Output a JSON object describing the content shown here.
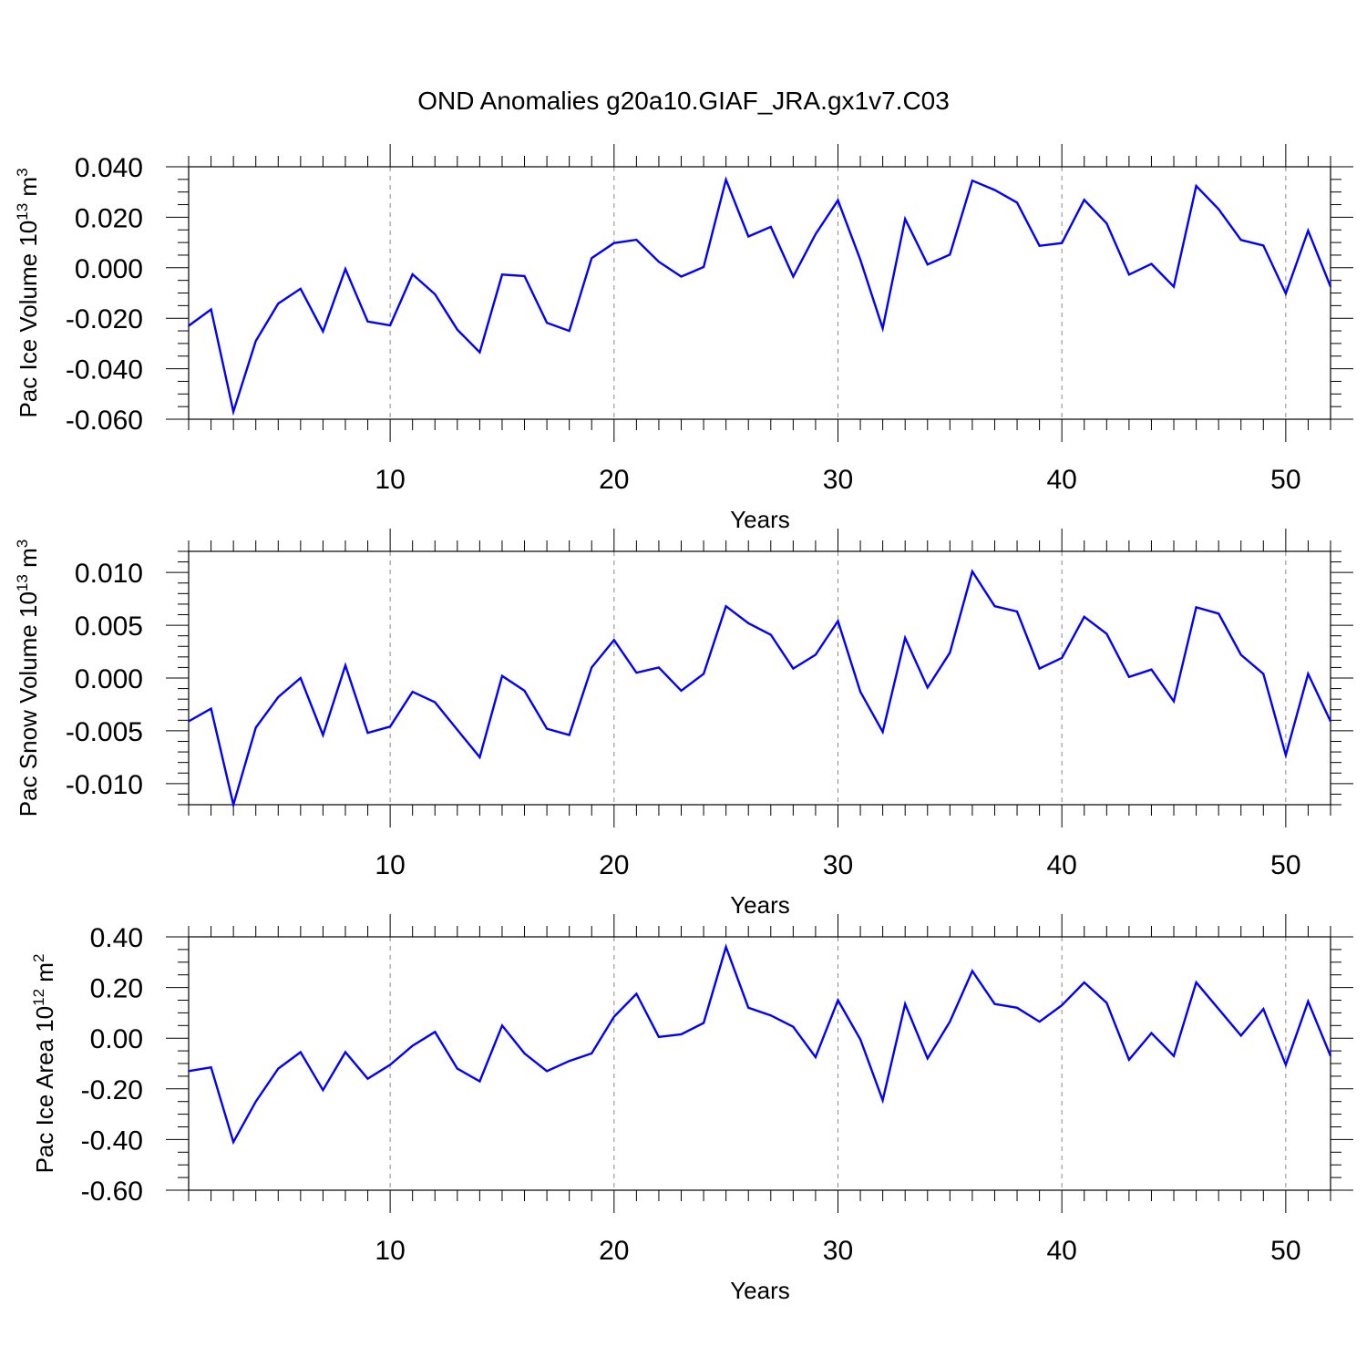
{
  "title": "OND Anomalies g20a10.GIAF_JRA.gx1v7.C03",
  "colors": {
    "line": "#0000ff",
    "axis": "#000000",
    "grid": "#888888",
    "background": "#ffffff"
  },
  "chart_data": [
    {
      "type": "line",
      "id": "ice-volume",
      "ylabel_main": "Pac Ice Volume 10",
      "ylabel_exp": "13",
      "ylabel_unit": " m",
      "ylabel_unit_exp": "3",
      "xlabel": "Years",
      "xlim": [
        1,
        52
      ],
      "ylim": [
        -0.06,
        0.04
      ],
      "x_ticks": [
        10,
        20,
        30,
        40,
        50
      ],
      "x_tick_labels": [
        "10",
        "20",
        "30",
        "40",
        "50"
      ],
      "y_ticks": [
        0.04,
        0.02,
        0.0,
        -0.02,
        -0.04,
        -0.06
      ],
      "y_tick_labels": [
        "0.040",
        "0.020",
        "0.000",
        "-0.020",
        "-0.040",
        "-0.060"
      ],
      "y_minor_step": 0.005,
      "x": [
        1,
        2,
        3,
        4,
        5,
        6,
        7,
        8,
        9,
        10,
        11,
        12,
        13,
        14,
        15,
        16,
        17,
        18,
        19,
        20,
        21,
        22,
        23,
        24,
        25,
        26,
        27,
        28,
        29,
        30,
        31,
        32,
        33,
        34,
        35,
        36,
        37,
        38,
        39,
        40,
        41,
        42,
        43,
        44,
        45,
        46,
        47,
        48,
        49,
        50,
        51,
        52
      ],
      "values": [
        -0.023,
        -0.0165,
        -0.057,
        -0.029,
        -0.0142,
        -0.0083,
        -0.0252,
        -0.0005,
        -0.0213,
        -0.0228,
        -0.0026,
        -0.0105,
        -0.0245,
        -0.0335,
        -0.0027,
        -0.0033,
        -0.0218,
        -0.025,
        0.0038,
        0.0098,
        0.0111,
        0.0024,
        -0.0035,
        0.0003,
        0.0349,
        0.0124,
        0.0162,
        -0.0035,
        0.0133,
        0.0267,
        0.0031,
        -0.024,
        0.0193,
        0.0013,
        0.0052,
        0.0345,
        0.0308,
        0.0258,
        0.0087,
        0.0098,
        0.0269,
        0.0176,
        -0.0027,
        0.0015,
        -0.0075,
        0.0324,
        0.0232,
        0.011,
        0.0088,
        -0.0102,
        0.0147,
        -0.0075
      ]
    },
    {
      "type": "line",
      "id": "snow-volume",
      "ylabel_main": "Pac Snow Volume 10",
      "ylabel_exp": "13",
      "ylabel_unit": " m",
      "ylabel_unit_exp": "3",
      "xlabel": "Years",
      "xlim": [
        1,
        52
      ],
      "ylim": [
        -0.012,
        0.012
      ],
      "x_ticks": [
        10,
        20,
        30,
        40,
        50
      ],
      "x_tick_labels": [
        "10",
        "20",
        "30",
        "40",
        "50"
      ],
      "y_ticks": [
        0.01,
        0.005,
        0.0,
        -0.005,
        -0.01
      ],
      "y_tick_labels": [
        "0.010",
        "0.005",
        "0.000",
        "-0.005",
        "-0.010"
      ],
      "y_minor_step": 0.001,
      "x": [
        1,
        2,
        3,
        4,
        5,
        6,
        7,
        8,
        9,
        10,
        11,
        12,
        13,
        14,
        15,
        16,
        17,
        18,
        19,
        20,
        21,
        22,
        23,
        24,
        25,
        26,
        27,
        28,
        29,
        30,
        31,
        32,
        33,
        34,
        35,
        36,
        37,
        38,
        39,
        40,
        41,
        42,
        43,
        44,
        45,
        46,
        47,
        48,
        49,
        50,
        51,
        52
      ],
      "values": [
        -0.0041,
        -0.0029,
        -0.012,
        -0.0047,
        -0.0018,
        0.0,
        -0.0054,
        0.0012,
        -0.0052,
        -0.0046,
        -0.0013,
        -0.0023,
        -0.0049,
        -0.0075,
        0.0002,
        -0.0012,
        -0.0048,
        -0.0054,
        0.001,
        0.0036,
        0.0005,
        0.001,
        -0.0012,
        0.0004,
        0.0068,
        0.0052,
        0.0041,
        0.0009,
        0.0022,
        0.0054,
        -0.0013,
        -0.0051,
        0.0038,
        -0.0009,
        0.0024,
        0.0101,
        0.0068,
        0.0063,
        0.0009,
        0.0019,
        0.0058,
        0.0042,
        0.0001,
        0.0008,
        -0.0022,
        0.0067,
        0.0061,
        0.0022,
        0.0004,
        -0.0073,
        0.0004,
        -0.0041
      ]
    },
    {
      "type": "line",
      "id": "ice-area",
      "ylabel_main": "Pac Ice Area 10",
      "ylabel_exp": "12",
      "ylabel_unit": " m",
      "ylabel_unit_exp": "2",
      "xlabel": "Years",
      "xlim": [
        1,
        52
      ],
      "ylim": [
        -0.6,
        0.4
      ],
      "x_ticks": [
        10,
        20,
        30,
        40,
        50
      ],
      "x_tick_labels": [
        "10",
        "20",
        "30",
        "40",
        "50"
      ],
      "y_ticks": [
        0.4,
        0.2,
        0.0,
        -0.2,
        -0.4,
        -0.6
      ],
      "y_tick_labels": [
        "0.40",
        "0.20",
        "0.00",
        "-0.20",
        "-0.40",
        "-0.60"
      ],
      "y_minor_step": 0.05,
      "x": [
        1,
        2,
        3,
        4,
        5,
        6,
        7,
        8,
        9,
        10,
        11,
        12,
        13,
        14,
        15,
        16,
        17,
        18,
        19,
        20,
        21,
        22,
        23,
        24,
        25,
        26,
        27,
        28,
        29,
        30,
        31,
        32,
        33,
        34,
        35,
        36,
        37,
        38,
        39,
        40,
        41,
        42,
        43,
        44,
        45,
        46,
        47,
        48,
        49,
        50,
        51,
        52
      ],
      "values": [
        -0.13,
        -0.115,
        -0.41,
        -0.25,
        -0.12,
        -0.055,
        -0.205,
        -0.055,
        -0.16,
        -0.105,
        -0.03,
        0.025,
        -0.12,
        -0.17,
        0.05,
        -0.06,
        -0.13,
        -0.09,
        -0.06,
        0.085,
        0.175,
        0.005,
        0.015,
        0.06,
        0.36,
        0.12,
        0.09,
        0.045,
        -0.075,
        0.15,
        -0.005,
        -0.245,
        0.135,
        -0.08,
        0.065,
        0.265,
        0.135,
        0.12,
        0.065,
        0.13,
        0.22,
        0.14,
        -0.085,
        0.02,
        -0.07,
        0.22,
        0.115,
        0.01,
        0.115,
        -0.105,
        0.145,
        -0.07
      ]
    }
  ]
}
